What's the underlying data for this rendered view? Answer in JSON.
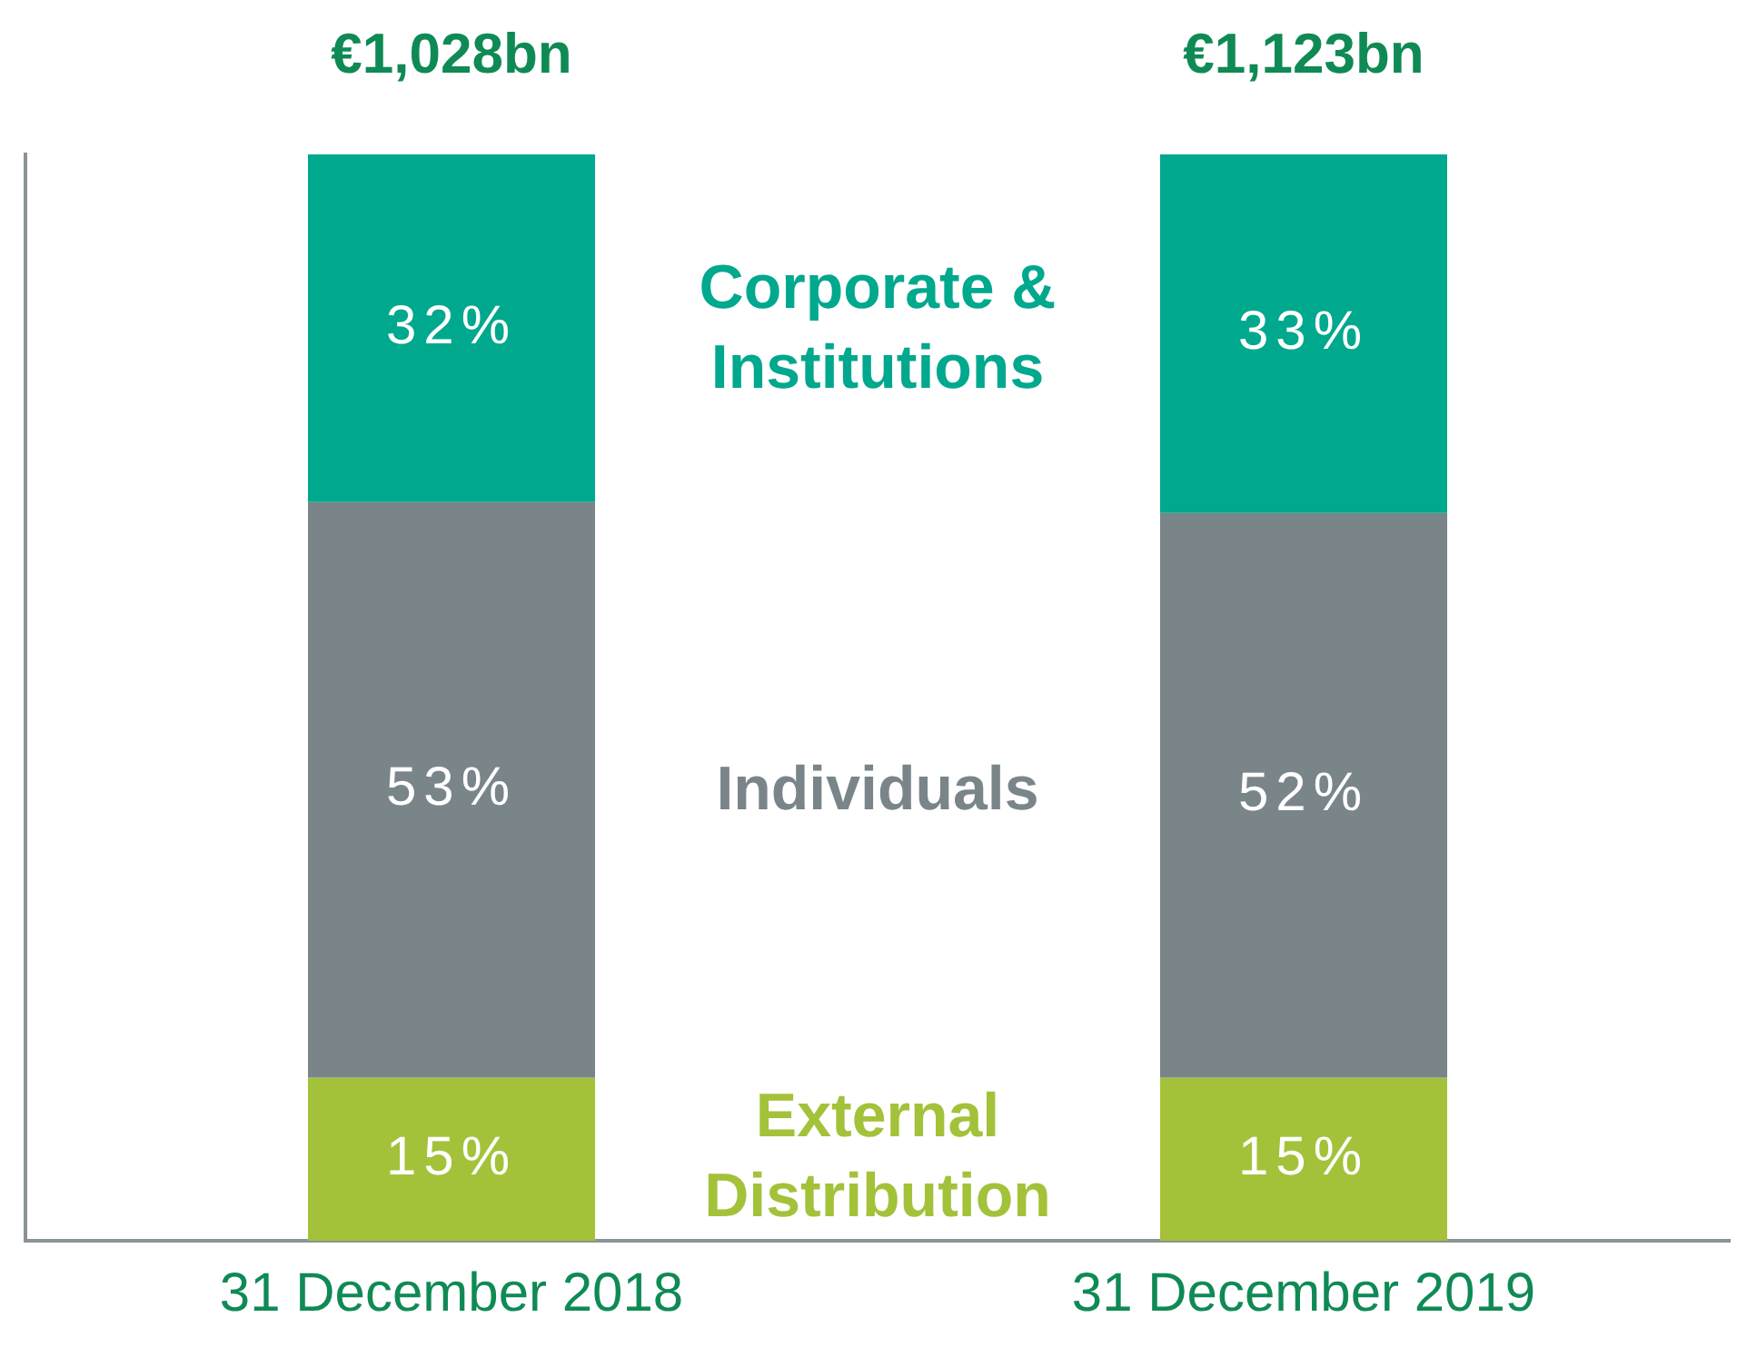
{
  "chart_data": {
    "type": "bar",
    "stacked": true,
    "categories": [
      "31 December 2018",
      "31 December 2019"
    ],
    "series": [
      {
        "name": "External Distribution",
        "color": "#a3c23a",
        "values": [
          15,
          15
        ],
        "value_labels": [
          "15%",
          "15%"
        ]
      },
      {
        "name": "Individuals",
        "color": "#7a858a",
        "values": [
          53,
          52
        ],
        "value_labels": [
          "53%",
          "52%"
        ]
      },
      {
        "name": "Corporate & Institutions",
        "color": "#00a88e",
        "values": [
          32,
          33
        ],
        "value_labels": [
          "32%",
          "33%"
        ]
      }
    ],
    "annotations": [
      "€1,028bn",
      "€1,123bn"
    ],
    "grid": false,
    "legend": false,
    "tick_labels": "x"
  }
}
